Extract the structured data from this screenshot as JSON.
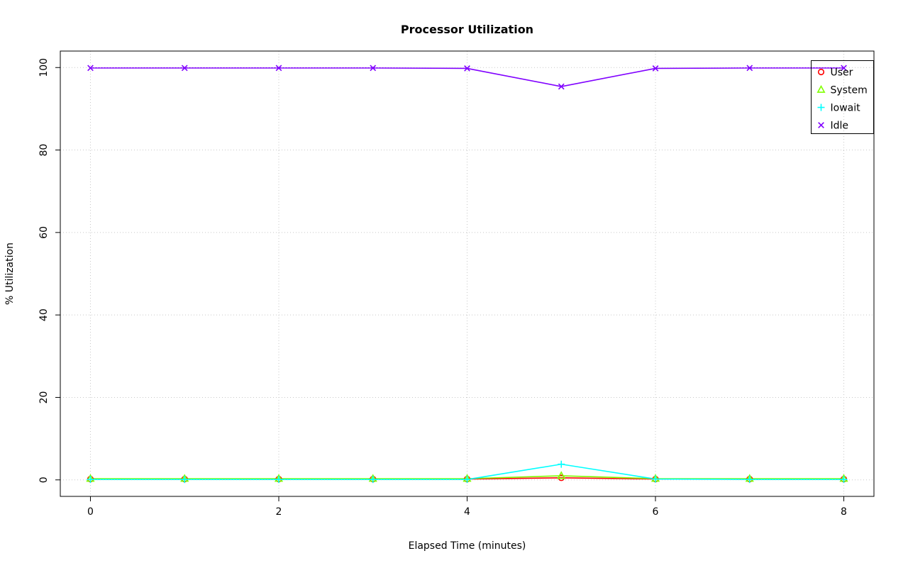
{
  "chart_data": {
    "type": "line",
    "title": "Processor Utilization",
    "xlabel": "Elapsed Time (minutes)",
    "ylabel": "% Utilization",
    "xlim": [
      0,
      8
    ],
    "ylim": [
      0,
      100
    ],
    "x_ticks": [
      0,
      2,
      4,
      6,
      8
    ],
    "y_ticks": [
      0,
      20,
      40,
      60,
      80,
      100
    ],
    "grid": true,
    "grid_style": "dotted",
    "grid_color": "#c8c8c8",
    "legend_position": "top-right",
    "x": [
      0,
      1,
      2,
      3,
      4,
      5,
      6,
      7,
      8
    ],
    "series": [
      {
        "name": "User",
        "color": "#FF0000",
        "marker": "circle",
        "values": [
          0.2,
          0.2,
          0.2,
          0.2,
          0.2,
          0.5,
          0.2,
          0.2,
          0.2
        ]
      },
      {
        "name": "System",
        "color": "#80FF00",
        "marker": "triangle",
        "values": [
          0.3,
          0.3,
          0.3,
          0.3,
          0.3,
          1.0,
          0.3,
          0.3,
          0.3
        ]
      },
      {
        "name": "Iowait",
        "color": "#00FFFF",
        "marker": "plus",
        "values": [
          0.1,
          0.1,
          0.1,
          0.1,
          0.1,
          3.8,
          0.2,
          0.1,
          0.1
        ]
      },
      {
        "name": "Idle",
        "color": "#8000FF",
        "marker": "x",
        "values": [
          99.9,
          99.9,
          99.9,
          99.9,
          99.8,
          95.4,
          99.8,
          99.9,
          99.9
        ]
      }
    ]
  }
}
